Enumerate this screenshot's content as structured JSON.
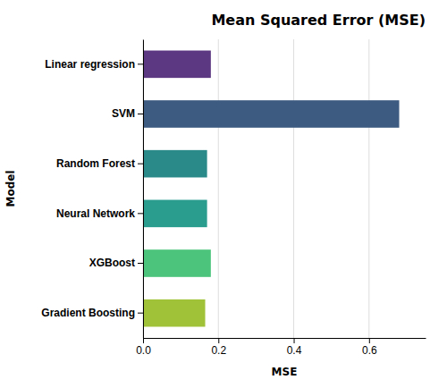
{
  "chart_data": {
    "type": "bar",
    "orientation": "horizontal",
    "title": "Mean Squared Error (MSE)",
    "xlabel": "MSE",
    "ylabel": "Model",
    "categories": [
      "Linear regression",
      "SVM",
      "Random Forest",
      "Neural Network",
      "XGBoost",
      "Gradient Boosting"
    ],
    "values": [
      0.18,
      0.68,
      0.17,
      0.17,
      0.18,
      0.165
    ],
    "colors": [
      "#5c3882",
      "#3d5a80",
      "#2a8a8a",
      "#2a9d8f",
      "#4cc47c",
      "#a0c238"
    ],
    "xlim": [
      0,
      0.75
    ],
    "xticks": [
      {
        "value": 0,
        "label": "0.0"
      },
      0.2,
      0.4,
      0.6
    ],
    "grid": true
  }
}
